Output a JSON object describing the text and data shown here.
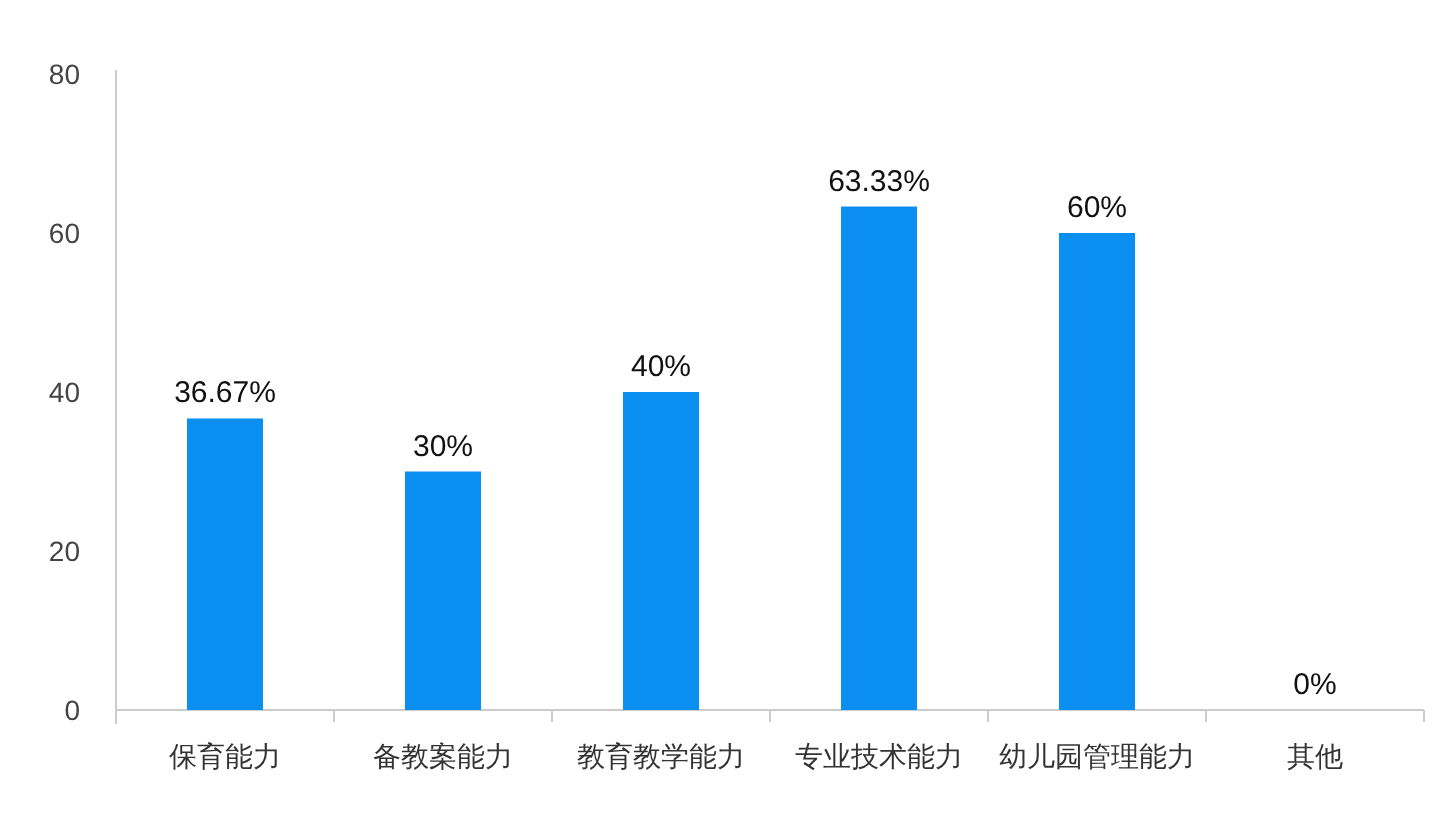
{
  "chart_data": {
    "type": "bar",
    "categories": [
      "保育能力",
      "备教案能力",
      "教育教学能力",
      "专业技术能力",
      "幼儿园管理能力",
      "其他"
    ],
    "values": [
      36.67,
      30,
      40,
      63.33,
      60,
      0
    ],
    "value_labels": [
      "36.67%",
      "30%",
      "40%",
      "63.33%",
      "60%",
      "0%"
    ],
    "color": "#0a8ff0",
    "ylim": [
      0,
      80
    ],
    "yticks": [
      0,
      20,
      40,
      60,
      80
    ],
    "grid": false
  }
}
